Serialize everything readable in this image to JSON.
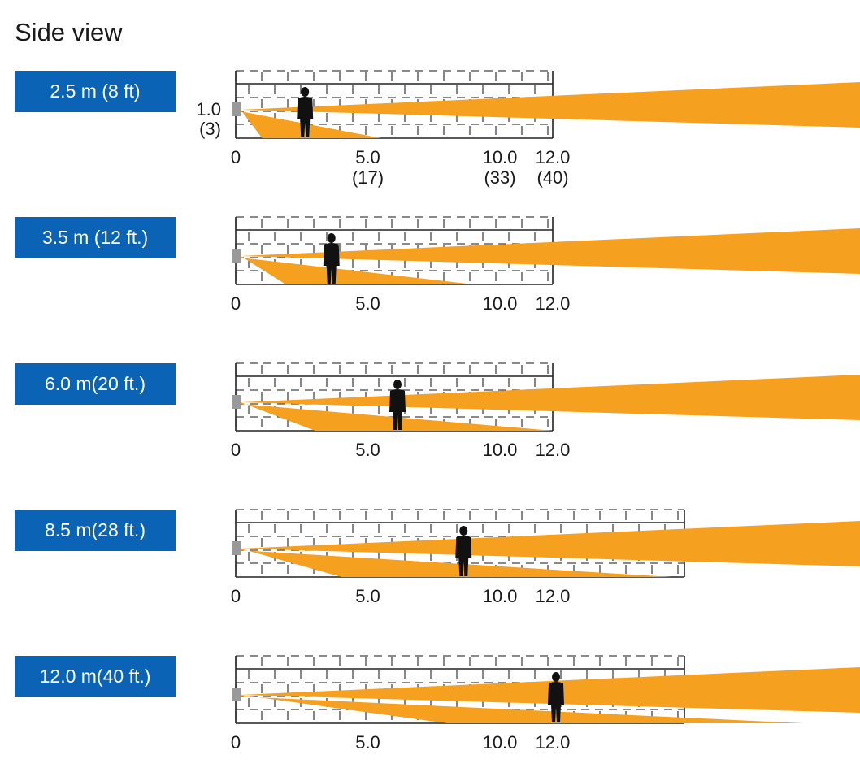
{
  "title": "Side view",
  "colors": {
    "beam": "#f6a01f",
    "label_bg": "#0a63b4",
    "camera": "#999999",
    "person": "#111111"
  },
  "panels": [
    {
      "label": "2.5 m (8 ft)",
      "person_m": 2.5,
      "y_axis": [
        "1.0",
        "(3)"
      ],
      "x_ticks": [
        {
          "m": 0,
          "t": "0"
        },
        {
          "m": 5,
          "t": "5.0"
        },
        {
          "m": 10,
          "t": "10.0"
        },
        {
          "m": 12,
          "t": "12.0"
        }
      ],
      "x_sub": [
        {
          "m": 5,
          "t": "(17)"
        },
        {
          "m": 10,
          "t": "(33)"
        },
        {
          "m": 12,
          "t": "(40)"
        }
      ]
    },
    {
      "label": "3.5 m (12 ft.)",
      "person_m": 3.5,
      "x_ticks": [
        {
          "m": 0,
          "t": "0"
        },
        {
          "m": 5,
          "t": "5.0"
        },
        {
          "m": 10,
          "t": "10.0"
        },
        {
          "m": 12,
          "t": "12.0"
        }
      ]
    },
    {
      "label": "6.0 m(20 ft.)",
      "person_m": 6.0,
      "x_ticks": [
        {
          "m": 0,
          "t": "0"
        },
        {
          "m": 5,
          "t": "5.0"
        },
        {
          "m": 10,
          "t": "10.0"
        },
        {
          "m": 12,
          "t": "12.0"
        }
      ]
    },
    {
      "label": "8.5 m(28 ft.)",
      "person_m": 8.5,
      "x_ticks": [
        {
          "m": 0,
          "t": "0"
        },
        {
          "m": 5,
          "t": "5.0"
        },
        {
          "m": 10,
          "t": "10.0"
        },
        {
          "m": 12,
          "t": "12.0"
        }
      ]
    },
    {
      "label": "12.0 m(40 ft.)",
      "person_m": 12.0,
      "x_ticks": [
        {
          "m": 0,
          "t": "0"
        },
        {
          "m": 5,
          "t": "5.0"
        },
        {
          "m": 10,
          "t": "10.0"
        },
        {
          "m": 12,
          "t": "12.0"
        }
      ]
    }
  ]
}
